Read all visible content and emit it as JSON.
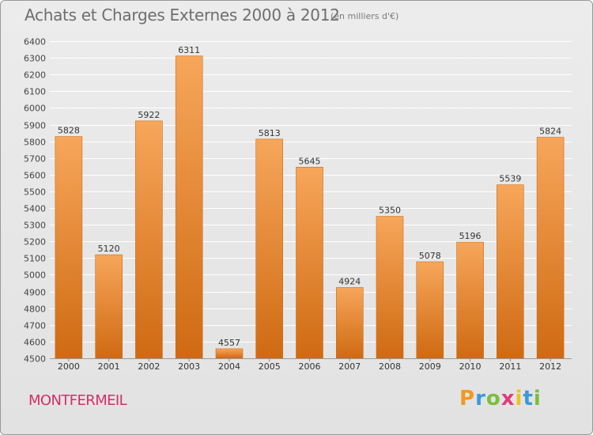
{
  "header": {
    "title": "Achats et Charges Externes 2000 à 2012",
    "subtitle": "(en milliers d'€)"
  },
  "footer": {
    "city": "MONTFERMEIL",
    "logo_text": "Proxiti",
    "logo_letters": [
      "P",
      "r",
      "o",
      "x",
      "i",
      "t",
      "i"
    ]
  },
  "colors": {
    "bar_light": "#f7a65a",
    "bar_dark": "#cf6a12",
    "grid": "#ffffff",
    "city": "#d2306a"
  },
  "chart_data": {
    "type": "bar",
    "title": "Achats et Charges Externes 2000 à 2012",
    "subtitle": "(en milliers d'€)",
    "xlabel": "",
    "ylabel": "",
    "categories": [
      "2000",
      "2001",
      "2002",
      "2003",
      "2004",
      "2005",
      "2006",
      "2007",
      "2008",
      "2009",
      "2010",
      "2011",
      "2012"
    ],
    "values": [
      5828,
      5120,
      5922,
      6311,
      4557,
      5813,
      5645,
      4924,
      5350,
      5078,
      5196,
      5539,
      5824
    ],
    "ylim": [
      4500,
      6400
    ],
    "yticks": [
      4500,
      4600,
      4700,
      4800,
      4900,
      5000,
      5100,
      5200,
      5300,
      5400,
      5500,
      5600,
      5700,
      5800,
      5900,
      6000,
      6100,
      6200,
      6300,
      6400
    ],
    "grid": true,
    "legend": "none"
  }
}
